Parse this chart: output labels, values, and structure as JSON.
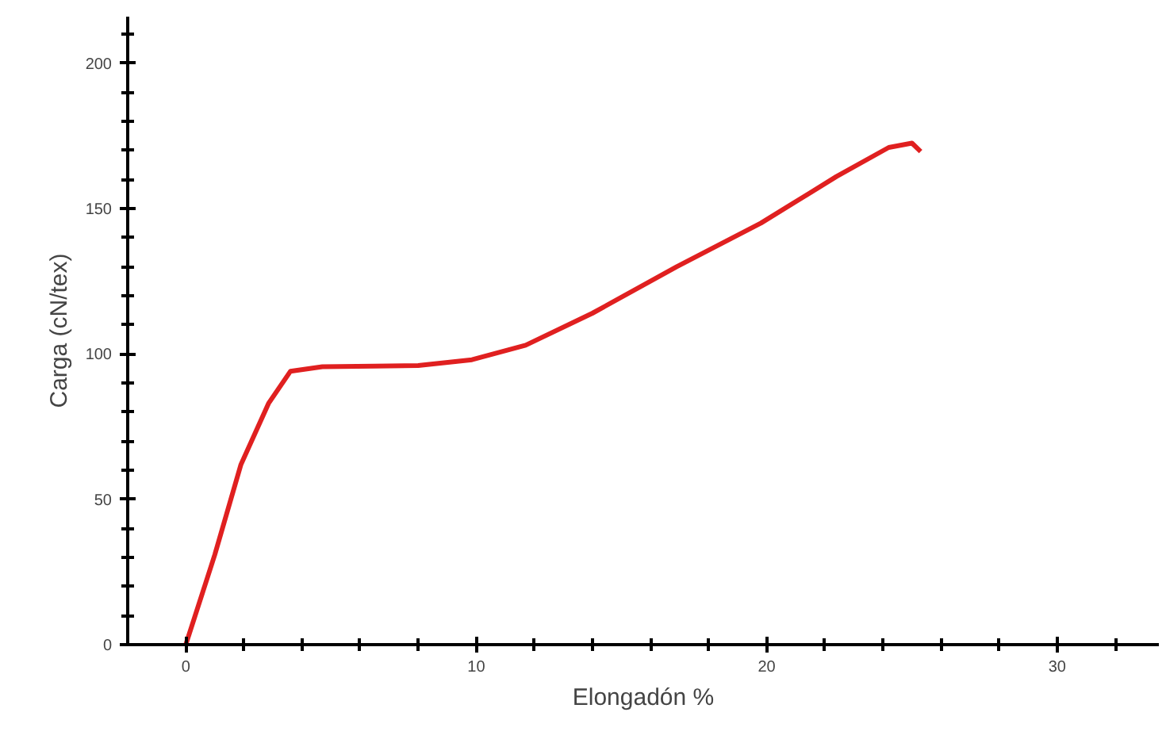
{
  "chart_data": {
    "type": "line",
    "xlabel": "Elongadón %",
    "ylabel": "Carga (cN/tex)",
    "xlim": [
      -2,
      33.5
    ],
    "ylim": [
      0,
      216
    ],
    "xticks": [
      0,
      10,
      20,
      30
    ],
    "yticks": [
      0,
      50,
      100,
      150,
      200
    ],
    "grid": false,
    "series": [
      {
        "color": "#e02020",
        "x": [
          0,
          1.0,
          1.9,
          2.85,
          3.6,
          4.7,
          6.5,
          8.0,
          9.85,
          11.7,
          14.0,
          16.9,
          19.8,
          22.4,
          24.2,
          25.0,
          25.3
        ],
        "values": [
          0,
          31,
          62,
          83,
          94,
          95.6,
          95.8,
          96,
          98,
          103,
          114,
          130,
          145,
          161,
          171,
          172.5,
          169.6
        ]
      }
    ]
  }
}
